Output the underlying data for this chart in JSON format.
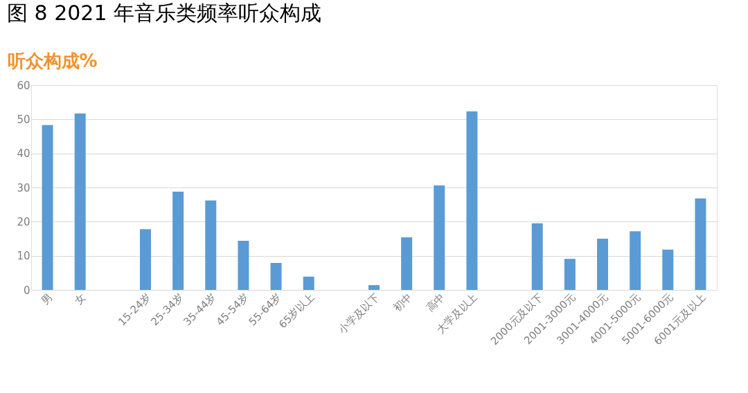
{
  "chart_data": {
    "type": "bar",
    "title": "图 8 2021 年音乐类频率听众构成",
    "ylabel": "听众构成%",
    "categories": [
      "男",
      "女",
      null,
      "15-24岁",
      "25-34岁",
      "35-44岁",
      "45-54岁",
      "55-64岁",
      "65岁以上",
      null,
      "小学及以下",
      "初中",
      "高中",
      "大学及以上",
      null,
      "2000元及以下",
      "2001-3000元",
      "3001-4000元",
      "4001-5000元",
      "5001-6000元",
      "6001元及以上"
    ],
    "values": [
      48.3,
      51.7,
      null,
      17.8,
      28.8,
      26.2,
      14.4,
      7.9,
      3.9,
      null,
      1.4,
      15.4,
      30.6,
      52.3,
      null,
      19.5,
      9.1,
      15.0,
      17.2,
      11.8,
      26.8
    ],
    "color": "#5b9bd5",
    "ylim": [
      0,
      60
    ],
    "yticks": [
      0,
      10,
      20,
      30,
      40,
      50,
      60
    ],
    "grid": "y"
  }
}
